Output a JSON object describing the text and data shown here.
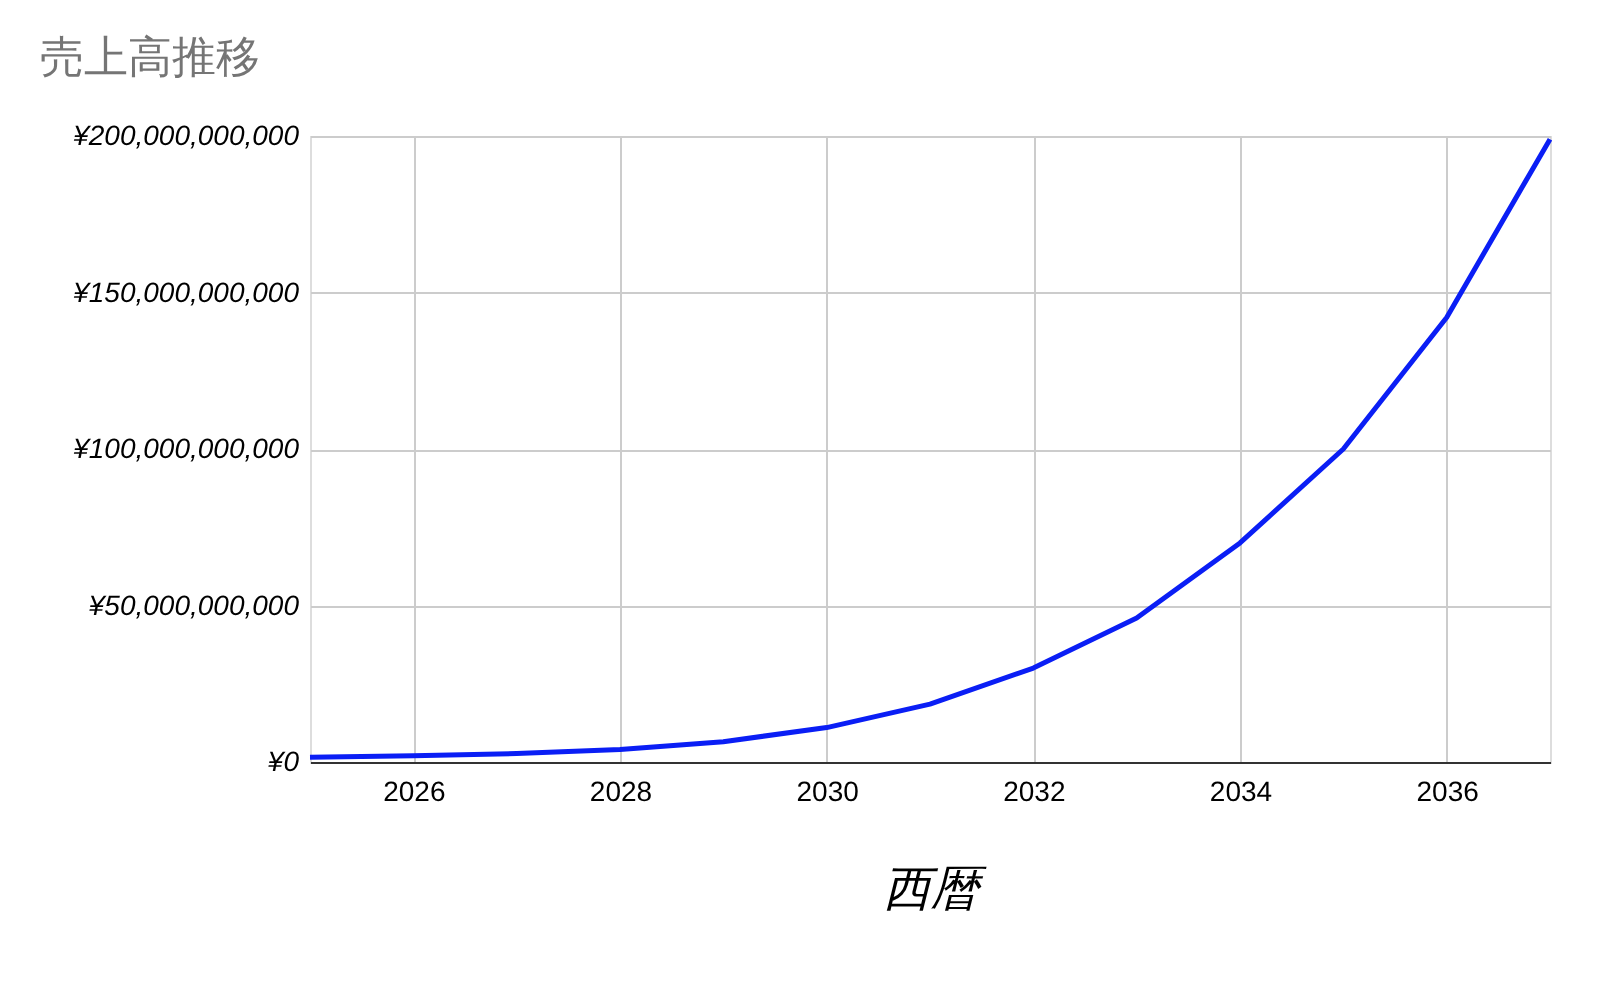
{
  "chart_data": {
    "type": "line",
    "title": "売上高推移",
    "xlabel": "西暦",
    "x": [
      2025,
      2026,
      2027,
      2028,
      2029,
      2030,
      2031,
      2032,
      2033,
      2034,
      2035,
      2036,
      2037
    ],
    "series": [
      {
        "color": "#0a1ef5",
        "values": [
          1500000000.0,
          2000000000.0,
          2700000000.0,
          4000000000.0,
          6500000000.0,
          11000000000.0,
          18500000000.0,
          30000000000.0,
          46000000000.0,
          70000000000.0,
          100000000000.0,
          142000000000.0,
          199000000000.0
        ]
      }
    ],
    "xlim": [
      2025,
      2037
    ],
    "xticks": [
      2026,
      2028,
      2030,
      2032,
      2034,
      2036
    ],
    "ylim": [
      0,
      200000000000
    ],
    "yticks": [
      {
        "value": 0,
        "label": "¥0"
      },
      {
        "value": 50000000000,
        "label": "¥50,000,000,000"
      },
      {
        "value": 100000000000,
        "label": "¥100,000,000,000"
      },
      {
        "value": 150000000000,
        "label": "¥150,000,000,000"
      },
      {
        "value": 200000000000,
        "label": "¥200,000,000,000"
      }
    ],
    "grid": true,
    "legend": false,
    "marker": "none",
    "line_style": "solid"
  }
}
